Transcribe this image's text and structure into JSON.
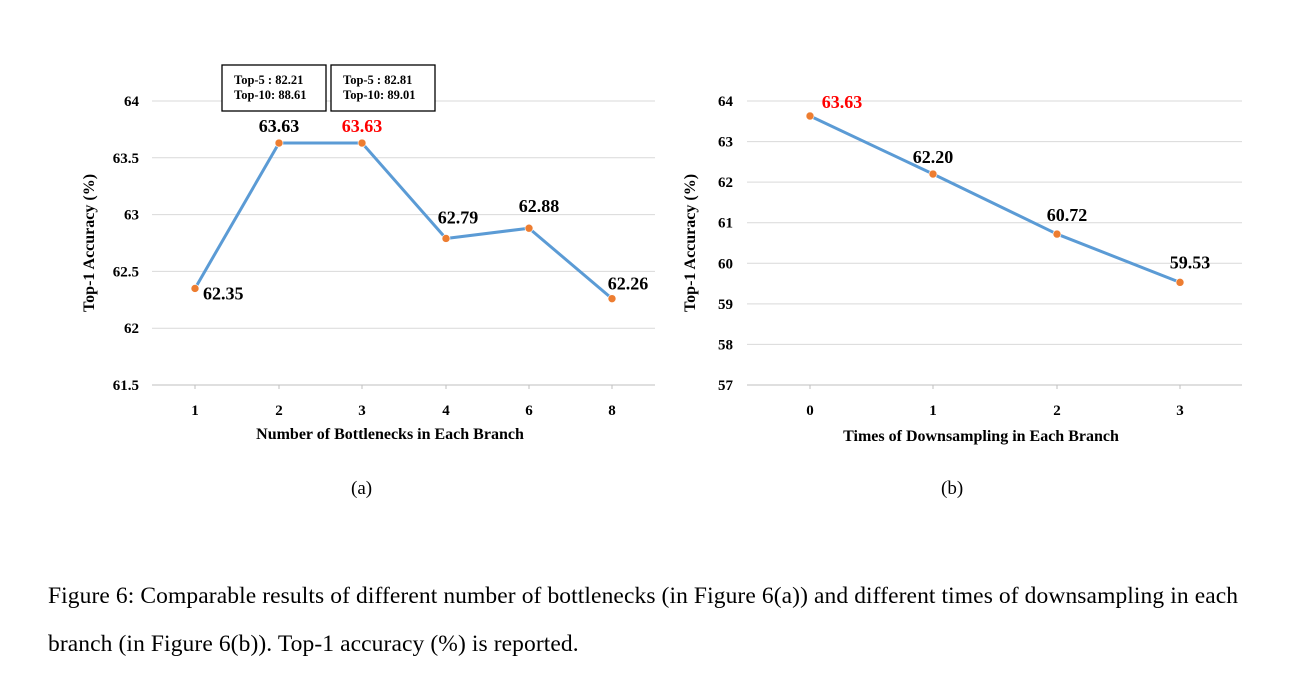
{
  "chart_data": [
    {
      "type": "line",
      "xlabel": "Number of Bottlenecks in Each Branch",
      "ylabel": "Top-1 Accuracy (%)",
      "categories": [
        "1",
        "2",
        "3",
        "4",
        "6",
        "8"
      ],
      "series": [
        {
          "values": [
            62.35,
            63.63,
            63.63,
            62.79,
            62.88,
            62.26
          ]
        }
      ],
      "data_labels": [
        "62.35",
        "63.63",
        "63.63",
        "62.79",
        "62.88",
        "62.26"
      ],
      "highlight_index": 2,
      "ylim": [
        61.5,
        64
      ],
      "yticks": [
        "61.5",
        "62",
        "62.5",
        "63",
        "63.5",
        "64"
      ],
      "grid": true,
      "annotations": [
        {
          "line1": "Top-5 : 82.21",
          "line2": "Top-10: 88.61",
          "category": "2"
        },
        {
          "line1": "Top-5 : 82.81",
          "line2": "Top-10: 89.01",
          "category": "3"
        }
      ],
      "sublabel": "(a)"
    },
    {
      "type": "line",
      "xlabel": "Times of Downsampling in Each Branch",
      "ylabel": "Top-1 Accuracy (%)",
      "categories": [
        "0",
        "1",
        "2",
        "3"
      ],
      "series": [
        {
          "values": [
            63.63,
            62.2,
            60.72,
            59.53
          ]
        }
      ],
      "data_labels": [
        "63.63",
        "62.20",
        "60.72",
        "59.53"
      ],
      "highlight_index": 0,
      "ylim": [
        57,
        64
      ],
      "yticks": [
        "57",
        "58",
        "59",
        "60",
        "61",
        "62",
        "63",
        "64"
      ],
      "grid": true,
      "sublabel": "(b)"
    }
  ],
  "colors": {
    "line": "#5b9bd5",
    "marker": "#ed7d31",
    "highlight": "#ff0000",
    "grid": "#d9d9d9"
  },
  "caption": "Figure 6: Comparable results of different number of bottlenecks (in Figure 6(a)) and different times of downsampling in each branch (in Figure 6(b)). Top-1 accuracy (%) is reported."
}
